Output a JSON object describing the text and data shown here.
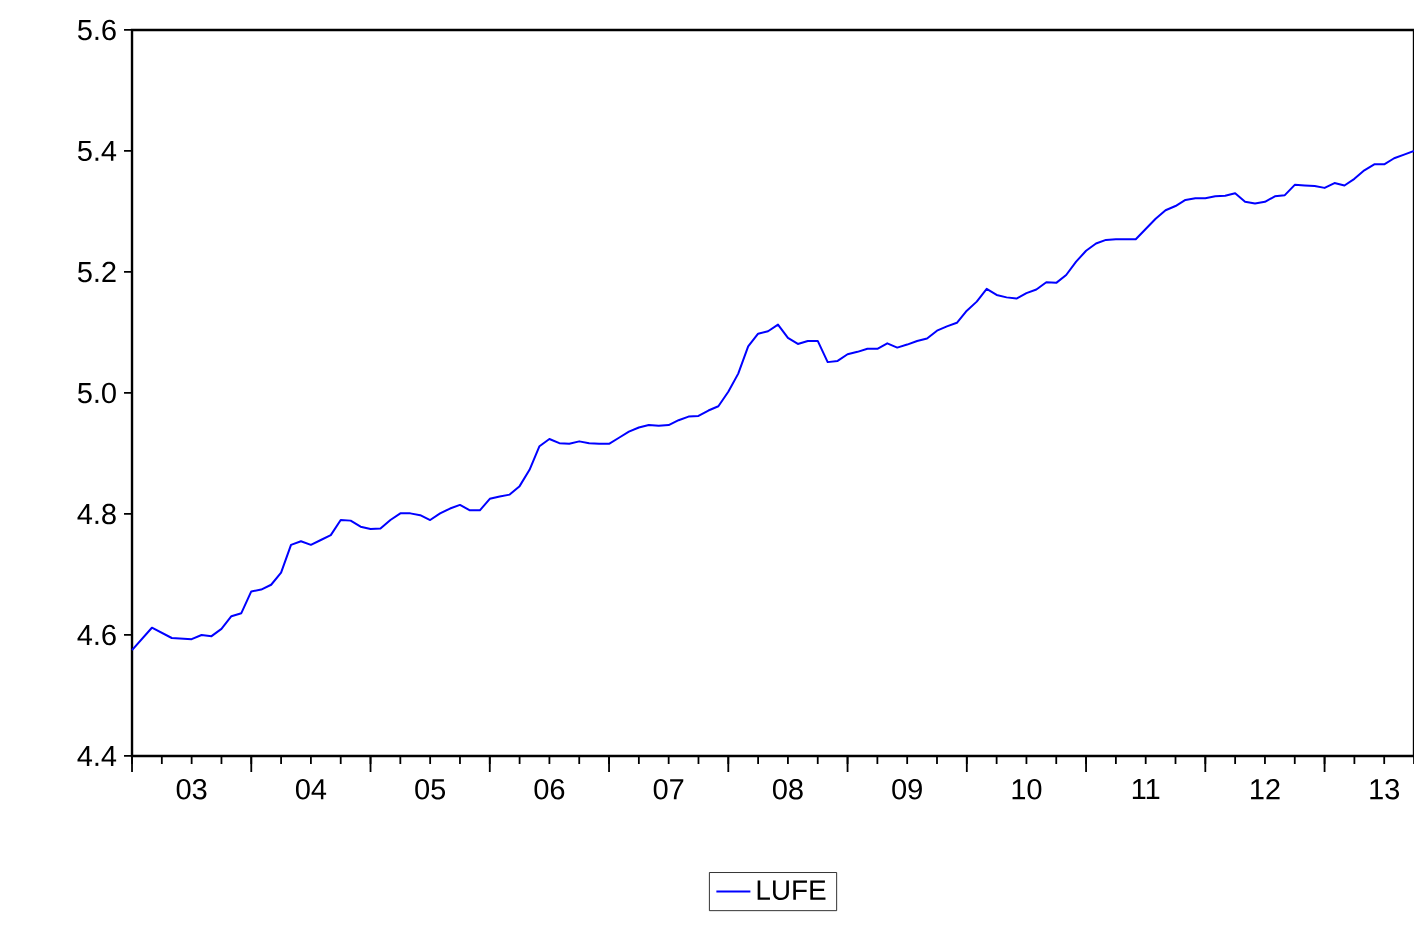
{
  "chart_data": {
    "type": "line",
    "x": [
      "2003-01",
      "2003-03",
      "2003-05",
      "2003-07",
      "2003-08",
      "2003-09",
      "2003-10",
      "2003-11",
      "2003-12",
      "2004-01",
      "2004-02",
      "2004-03",
      "2004-04",
      "2004-05",
      "2004-06",
      "2004-07",
      "2004-08",
      "2004-09",
      "2004-10",
      "2004-11",
      "2004-12",
      "2005-01",
      "2005-02",
      "2005-03",
      "2005-04",
      "2005-05",
      "2005-06",
      "2005-07",
      "2005-08",
      "2005-09",
      "2005-10",
      "2005-11",
      "2005-12",
      "2006-01",
      "2006-02",
      "2006-03",
      "2006-04",
      "2006-05",
      "2006-06",
      "2006-07",
      "2006-08",
      "2006-09",
      "2006-10",
      "2006-11",
      "2006-12",
      "2007-01",
      "2007-02",
      "2007-03",
      "2007-04",
      "2007-05",
      "2007-06",
      "2007-07",
      "2007-08",
      "2007-09",
      "2007-10",
      "2007-11",
      "2007-12",
      "2008-01",
      "2008-02",
      "2008-03",
      "2008-04",
      "2008-05",
      "2008-06",
      "2008-07",
      "2008-08",
      "2008-09",
      "2008-10",
      "2008-11",
      "2008-12",
      "2009-01",
      "2009-02",
      "2009-03",
      "2009-04",
      "2009-05",
      "2009-06",
      "2009-07",
      "2009-08",
      "2009-09",
      "2009-10",
      "2009-11",
      "2009-12",
      "2010-01",
      "2010-02",
      "2010-03",
      "2010-04",
      "2010-05",
      "2010-06",
      "2010-07",
      "2010-08",
      "2010-09",
      "2010-10",
      "2010-11",
      "2010-12",
      "2011-01",
      "2011-02",
      "2011-03",
      "2011-04",
      "2011-06",
      "2011-07",
      "2011-08",
      "2011-09",
      "2011-10",
      "2011-11",
      "2011-12",
      "2012-01",
      "2012-02",
      "2012-03",
      "2012-04",
      "2012-05",
      "2012-06",
      "2012-07",
      "2012-08",
      "2012-09",
      "2012-10",
      "2012-11",
      "2012-12",
      "2013-01",
      "2013-02",
      "2013-03",
      "2013-04",
      "2013-05",
      "2013-06",
      "2013-07",
      "2013-08",
      "2013-09",
      "2013-10"
    ],
    "series": [
      {
        "name": "LUFE",
        "color": "#0000ff",
        "values": [
          4.575,
          4.612,
          4.595,
          4.593,
          4.6,
          4.598,
          4.61,
          4.631,
          4.636,
          4.672,
          4.675,
          4.683,
          4.703,
          4.749,
          4.755,
          4.749,
          4.757,
          4.765,
          4.79,
          4.789,
          4.779,
          4.775,
          4.776,
          4.79,
          4.801,
          4.801,
          4.798,
          4.79,
          4.801,
          4.809,
          4.815,
          4.806,
          4.806,
          4.825,
          4.829,
          4.832,
          4.846,
          4.873,
          4.912,
          4.924,
          4.917,
          4.916,
          4.92,
          4.917,
          4.916,
          4.916,
          4.926,
          4.936,
          4.943,
          4.947,
          4.946,
          4.947,
          4.955,
          4.961,
          4.962,
          4.971,
          4.978,
          5.002,
          5.032,
          5.077,
          5.098,
          5.102,
          5.113,
          5.091,
          5.081,
          5.086,
          5.086,
          5.051,
          5.053,
          5.064,
          5.068,
          5.073,
          5.073,
          5.082,
          5.075,
          5.08,
          5.086,
          5.09,
          5.103,
          5.11,
          5.116,
          5.136,
          5.151,
          5.172,
          5.162,
          5.158,
          5.156,
          5.165,
          5.171,
          5.183,
          5.182,
          5.195,
          5.217,
          5.235,
          5.247,
          5.253,
          5.254,
          5.254,
          5.271,
          5.288,
          5.302,
          5.309,
          5.319,
          5.322,
          5.322,
          5.325,
          5.326,
          5.33,
          5.316,
          5.313,
          5.316,
          5.325,
          5.327,
          5.344,
          5.343,
          5.342,
          5.339,
          5.347,
          5.343,
          5.354,
          5.368,
          5.378,
          5.378,
          5.388,
          5.394,
          5.4
        ]
      }
    ],
    "xlim": [
      "2003-01",
      "2013-10"
    ],
    "xticks": [
      {
        "value": "2003-01",
        "label": null
      },
      {
        "value": "2003-04",
        "label": null
      },
      {
        "value": "2003-07",
        "label": "03"
      },
      {
        "value": "2003-10",
        "label": null
      },
      {
        "value": "2004-01",
        "label": null
      },
      {
        "value": "2004-04",
        "label": null
      },
      {
        "value": "2004-07",
        "label": "04"
      },
      {
        "value": "2004-10",
        "label": null
      },
      {
        "value": "2005-01",
        "label": null
      },
      {
        "value": "2005-04",
        "label": null
      },
      {
        "value": "2005-07",
        "label": "05"
      },
      {
        "value": "2005-10",
        "label": null
      },
      {
        "value": "2006-01",
        "label": null
      },
      {
        "value": "2006-04",
        "label": null
      },
      {
        "value": "2006-07",
        "label": "06"
      },
      {
        "value": "2006-10",
        "label": null
      },
      {
        "value": "2007-01",
        "label": null
      },
      {
        "value": "2007-04",
        "label": null
      },
      {
        "value": "2007-07",
        "label": "07"
      },
      {
        "value": "2007-10",
        "label": null
      },
      {
        "value": "2008-01",
        "label": null
      },
      {
        "value": "2008-04",
        "label": null
      },
      {
        "value": "2008-07",
        "label": "08"
      },
      {
        "value": "2008-10",
        "label": null
      },
      {
        "value": "2009-01",
        "label": null
      },
      {
        "value": "2009-04",
        "label": null
      },
      {
        "value": "2009-07",
        "label": "09"
      },
      {
        "value": "2009-10",
        "label": null
      },
      {
        "value": "2010-01",
        "label": null
      },
      {
        "value": "2010-04",
        "label": null
      },
      {
        "value": "2010-07",
        "label": "10"
      },
      {
        "value": "2010-10",
        "label": null
      },
      {
        "value": "2011-01",
        "label": null
      },
      {
        "value": "2011-04",
        "label": null
      },
      {
        "value": "2011-07",
        "label": "11"
      },
      {
        "value": "2011-10",
        "label": null
      },
      {
        "value": "2012-01",
        "label": null
      },
      {
        "value": "2012-04",
        "label": null
      },
      {
        "value": "2012-07",
        "label": "12"
      },
      {
        "value": "2012-10",
        "label": null
      },
      {
        "value": "2013-01",
        "label": null
      },
      {
        "value": "2013-04",
        "label": null
      },
      {
        "value": "2013-07",
        "label": "13"
      },
      {
        "value": "2013-10",
        "label": null
      }
    ],
    "ylim": [
      4.4,
      5.6
    ],
    "yticks": [
      4.4,
      4.6,
      4.8,
      {
        "value": 5.0,
        "label": "5.0"
      },
      5.2,
      5.4,
      5.6
    ],
    "grid": false,
    "legend": "bottom",
    "marker": "none",
    "line_style": "solid"
  }
}
